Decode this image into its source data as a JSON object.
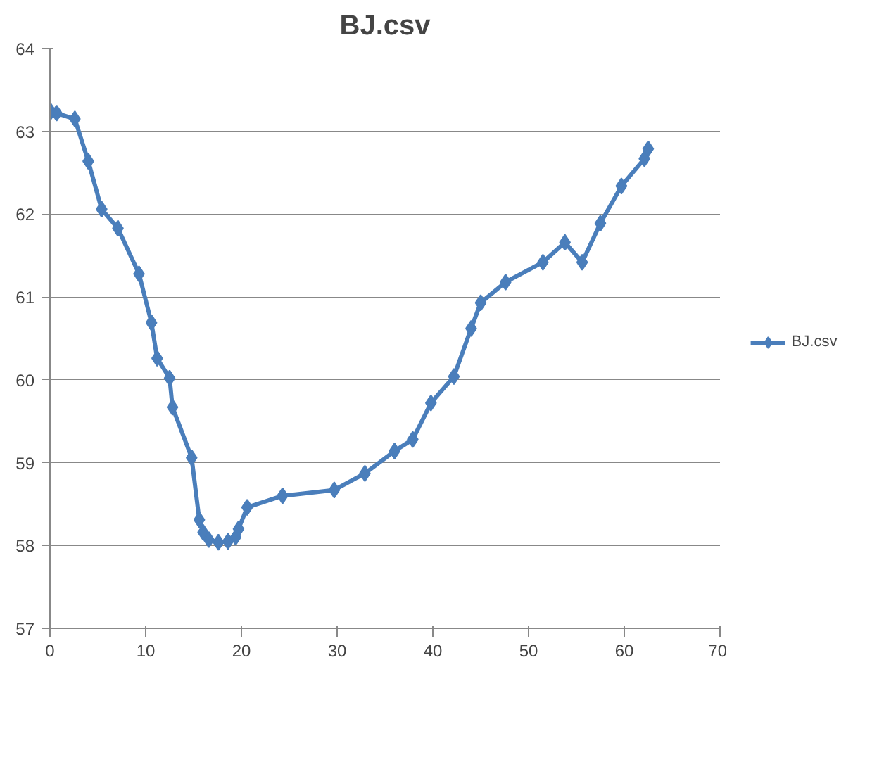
{
  "chart_data": {
    "type": "line",
    "title": "BJ.csv",
    "xlim": [
      0,
      70
    ],
    "xticks": [
      0,
      10,
      20,
      30,
      40,
      50,
      60,
      70
    ],
    "ylim": [
      57,
      64
    ],
    "yticks": [
      57,
      58,
      59,
      60,
      61,
      62,
      63,
      64
    ],
    "grid": "y",
    "legend": "right",
    "marker": "diamond",
    "line_style": "solid",
    "series": [
      {
        "name": "BJ.csv",
        "color": "#4a7ebb",
        "x": [
          0.1,
          0.7,
          2.6,
          4.0,
          5.4,
          7.1,
          9.3,
          10.6,
          11.2,
          12.5,
          12.8,
          14.8,
          15.6,
          16.0,
          16.6,
          17.6,
          18.6,
          19.4,
          19.7,
          20.6,
          24.3,
          29.7,
          32.9,
          36.0,
          37.9,
          39.8,
          42.2,
          44.0,
          45.0,
          47.6,
          51.5,
          53.8,
          55.6,
          57.5,
          59.7,
          62.1,
          62.5
        ],
        "values": [
          63.24,
          63.22,
          63.15,
          62.64,
          62.06,
          61.83,
          61.28,
          60.69,
          60.26,
          60.02,
          59.67,
          59.06,
          58.31,
          58.16,
          58.07,
          58.04,
          58.05,
          58.1,
          58.2,
          58.46,
          58.6,
          58.67,
          58.87,
          59.14,
          59.28,
          59.72,
          60.04,
          60.62,
          60.93,
          61.18,
          61.42,
          61.66,
          61.42,
          61.89,
          62.34,
          62.67,
          62.79
        ]
      }
    ]
  }
}
